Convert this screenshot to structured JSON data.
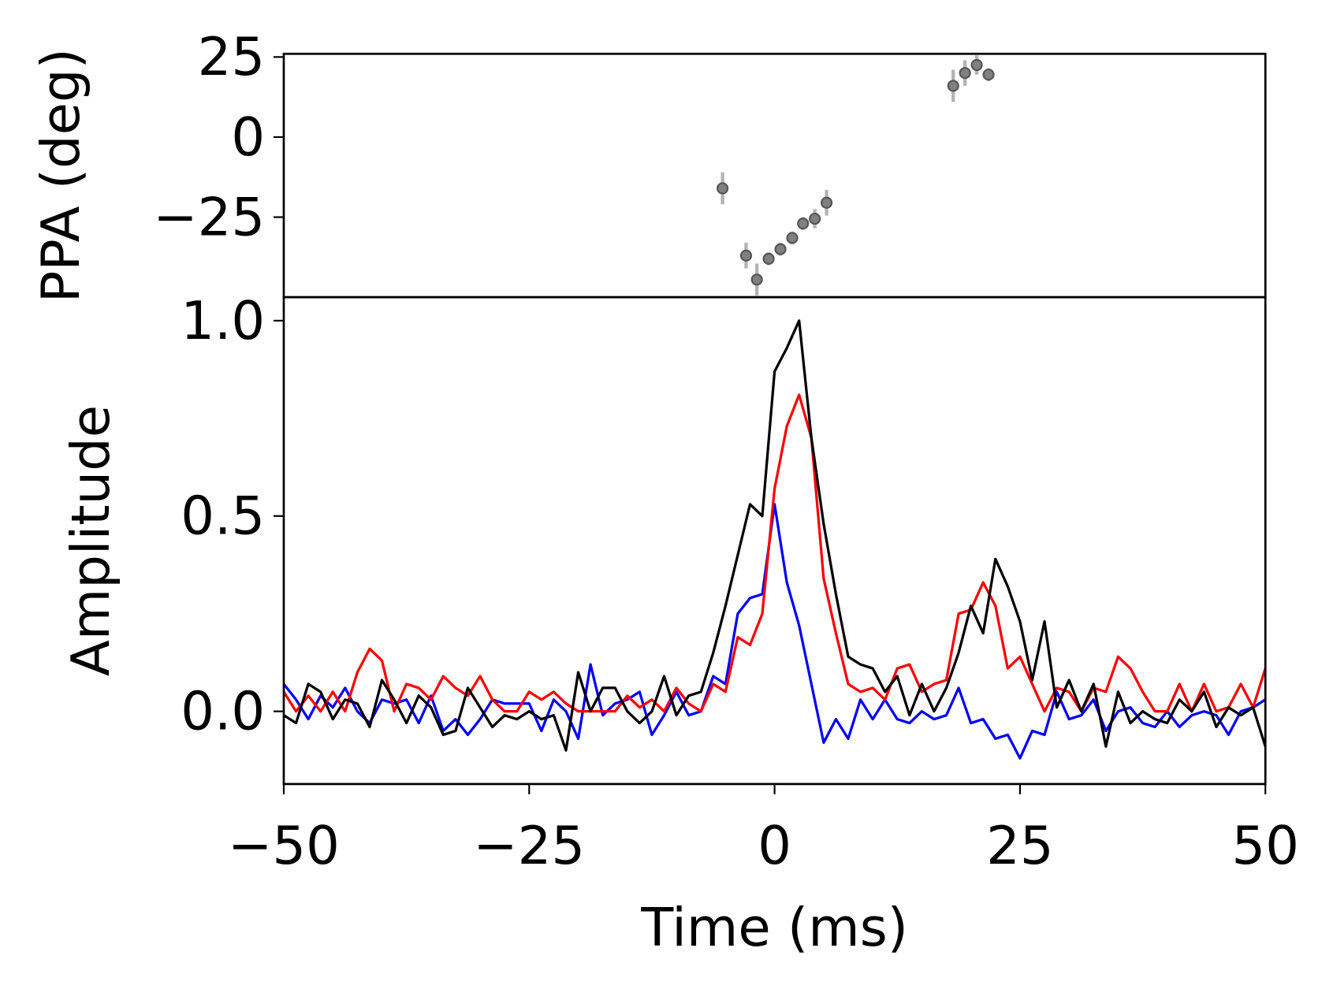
{
  "chart_data": [
    {
      "type": "scatter",
      "ylabel": "PPA (deg)",
      "color": "#808080",
      "x": [
        -5.3,
        -2.9,
        -1.8,
        -0.6,
        0.6,
        1.8,
        2.9,
        4.1,
        5.3,
        18.2,
        19.4,
        20.6,
        21.8
      ],
      "values": [
        -16,
        -37,
        -44.5,
        -38,
        -35,
        -31.5,
        -27,
        -25.5,
        -20.5,
        16,
        20,
        22.5,
        19.5
      ],
      "errors": [
        5,
        4,
        5,
        2,
        2,
        2,
        2,
        3,
        4,
        5,
        4,
        3,
        2
      ],
      "xlim": [
        -50,
        50
      ],
      "ylim": [
        -50,
        26
      ],
      "yticks": [
        {
          "value": -25,
          "label": "−25"
        },
        0,
        25
      ]
    },
    {
      "type": "line",
      "xlabel": "Time (ms)",
      "ylabel": "Amplitude",
      "x": [
        -50,
        -48.75,
        -47.5,
        -46.25,
        -45,
        -43.75,
        -42.5,
        -41.25,
        -40,
        -38.75,
        -37.5,
        -36.25,
        -35,
        -33.75,
        -32.5,
        -31.25,
        -30,
        -28.75,
        -27.5,
        -26.25,
        -25,
        -23.75,
        -22.5,
        -21.25,
        -20,
        -18.75,
        -17.5,
        -16.25,
        -15,
        -13.75,
        -12.5,
        -11.25,
        -10,
        -8.75,
        -7.5,
        -6.25,
        -5,
        -3.75,
        -2.5,
        -1.25,
        0,
        1.25,
        2.5,
        3.75,
        5,
        6.25,
        7.5,
        8.75,
        10,
        11.25,
        12.5,
        13.75,
        15,
        16.25,
        17.5,
        18.75,
        20,
        21.25,
        22.5,
        23.75,
        25,
        26.25,
        27.5,
        28.75,
        30,
        31.25,
        32.5,
        33.75,
        35,
        36.25,
        37.5,
        38.75,
        40,
        41.25,
        42.5,
        43.75,
        45,
        46.25,
        47.5,
        48.75,
        50
      ],
      "series": [
        {
          "color": "#0000ff",
          "values": [
            0.07,
            0.03,
            -0.02,
            0.04,
            0.01,
            0.06,
            0.0,
            -0.03,
            0.03,
            0.02,
            0.03,
            -0.03,
            0.04,
            -0.05,
            -0.02,
            -0.06,
            -0.02,
            0.03,
            0.02,
            0.02,
            0.02,
            -0.05,
            0.03,
            0.0,
            -0.07,
            0.12,
            -0.01,
            0.02,
            0.03,
            0.05,
            -0.06,
            -0.01,
            0.05,
            -0.01,
            0.0,
            0.09,
            0.07,
            0.25,
            0.29,
            0.3,
            0.53,
            0.33,
            0.22,
            0.07,
            -0.08,
            -0.02,
            -0.07,
            0.03,
            -0.02,
            0.03,
            -0.02,
            -0.03,
            0.0,
            -0.02,
            -0.01,
            0.06,
            -0.03,
            -0.02,
            -0.07,
            -0.06,
            -0.12,
            -0.05,
            -0.06,
            0.05,
            -0.02,
            -0.01,
            0.03,
            -0.05,
            0.0,
            0.01,
            -0.03,
            -0.04,
            0.0,
            -0.04,
            -0.01,
            0.0,
            -0.01,
            -0.06,
            0.0,
            0.01,
            0.03
          ]
        },
        {
          "color": "#ff0000",
          "values": [
            0.05,
            0.0,
            0.04,
            0.0,
            0.05,
            0.0,
            0.1,
            0.16,
            0.13,
            0.0,
            0.07,
            0.06,
            0.03,
            0.09,
            0.06,
            0.04,
            0.09,
            0.03,
            0.0,
            0.0,
            0.05,
            0.03,
            0.05,
            0.02,
            0.0,
            0.0,
            0.0,
            0.0,
            0.04,
            0.01,
            0.03,
            0.0,
            0.06,
            0.02,
            0.0,
            0.07,
            0.05,
            0.19,
            0.17,
            0.25,
            0.57,
            0.73,
            0.81,
            0.7,
            0.34,
            0.2,
            0.07,
            0.05,
            0.06,
            0.03,
            0.11,
            0.12,
            0.05,
            0.07,
            0.08,
            0.25,
            0.26,
            0.33,
            0.27,
            0.11,
            0.14,
            0.07,
            0.0,
            0.06,
            0.05,
            0.0,
            0.06,
            0.05,
            0.14,
            0.11,
            0.05,
            0.0,
            0.0,
            0.07,
            0.0,
            0.07,
            0.0,
            0.01,
            0.07,
            0.01,
            0.11
          ]
        },
        {
          "color": "#000000",
          "values": [
            -0.01,
            -0.03,
            0.07,
            0.05,
            -0.02,
            0.03,
            0.02,
            -0.04,
            0.08,
            0.03,
            -0.03,
            0.04,
            0.01,
            -0.06,
            -0.05,
            0.06,
            0.01,
            -0.04,
            -0.01,
            -0.02,
            0.0,
            -0.02,
            -0.01,
            -0.1,
            0.1,
            0.0,
            0.06,
            0.06,
            0.0,
            -0.03,
            0.0,
            0.09,
            -0.01,
            0.04,
            0.05,
            0.15,
            0.27,
            0.4,
            0.53,
            0.5,
            0.87,
            0.93,
            1.0,
            0.7,
            0.48,
            0.3,
            0.14,
            0.12,
            0.11,
            0.05,
            0.09,
            -0.01,
            0.07,
            0.0,
            0.06,
            0.15,
            0.27,
            0.2,
            0.39,
            0.32,
            0.23,
            0.08,
            0.23,
            0.01,
            0.08,
            0.0,
            0.07,
            -0.09,
            0.05,
            -0.03,
            0.0,
            -0.02,
            -0.03,
            0.03,
            0.0,
            0.05,
            -0.04,
            0.01,
            -0.01,
            0.01,
            -0.09
          ]
        }
      ],
      "xlim": [
        -50,
        50
      ],
      "ylim": [
        -0.186,
        1.06
      ],
      "xticks": [
        {
          "value": -50,
          "label": "−50"
        },
        {
          "value": -25,
          "label": "−25"
        },
        0,
        25,
        50
      ],
      "yticks": [
        {
          "value": 0,
          "label": "0.0"
        },
        0.5,
        {
          "value": 1,
          "label": "1.0"
        }
      ]
    }
  ]
}
